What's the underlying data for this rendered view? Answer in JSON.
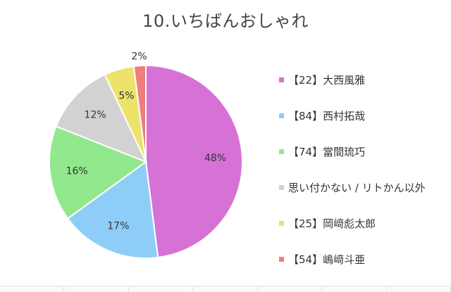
{
  "chart_data": {
    "type": "pie",
    "title": "10.いちばんおしゃれ",
    "legend_position": "right",
    "slices": [
      {
        "label": "【22】大西風雅",
        "value": 48,
        "value_label": "48%",
        "color": "#d672d6"
      },
      {
        "label": "【84】西村拓哉",
        "value": 17,
        "value_label": "17%",
        "color": "#8ecdf7"
      },
      {
        "label": "【74】當間琉巧",
        "value": 16,
        "value_label": "16%",
        "color": "#92e88d"
      },
      {
        "label": "思い付かない / リトかん以外",
        "value": 12,
        "value_label": "12%",
        "color": "#d2d2d2"
      },
      {
        "label": "【25】岡﨑彪太郎",
        "value": 5,
        "value_label": "5%",
        "color": "#ede36b"
      },
      {
        "label": "【54】嶋﨑斗亜",
        "value": 2,
        "value_label": "2%",
        "color": "#ef7d7d"
      }
    ]
  }
}
